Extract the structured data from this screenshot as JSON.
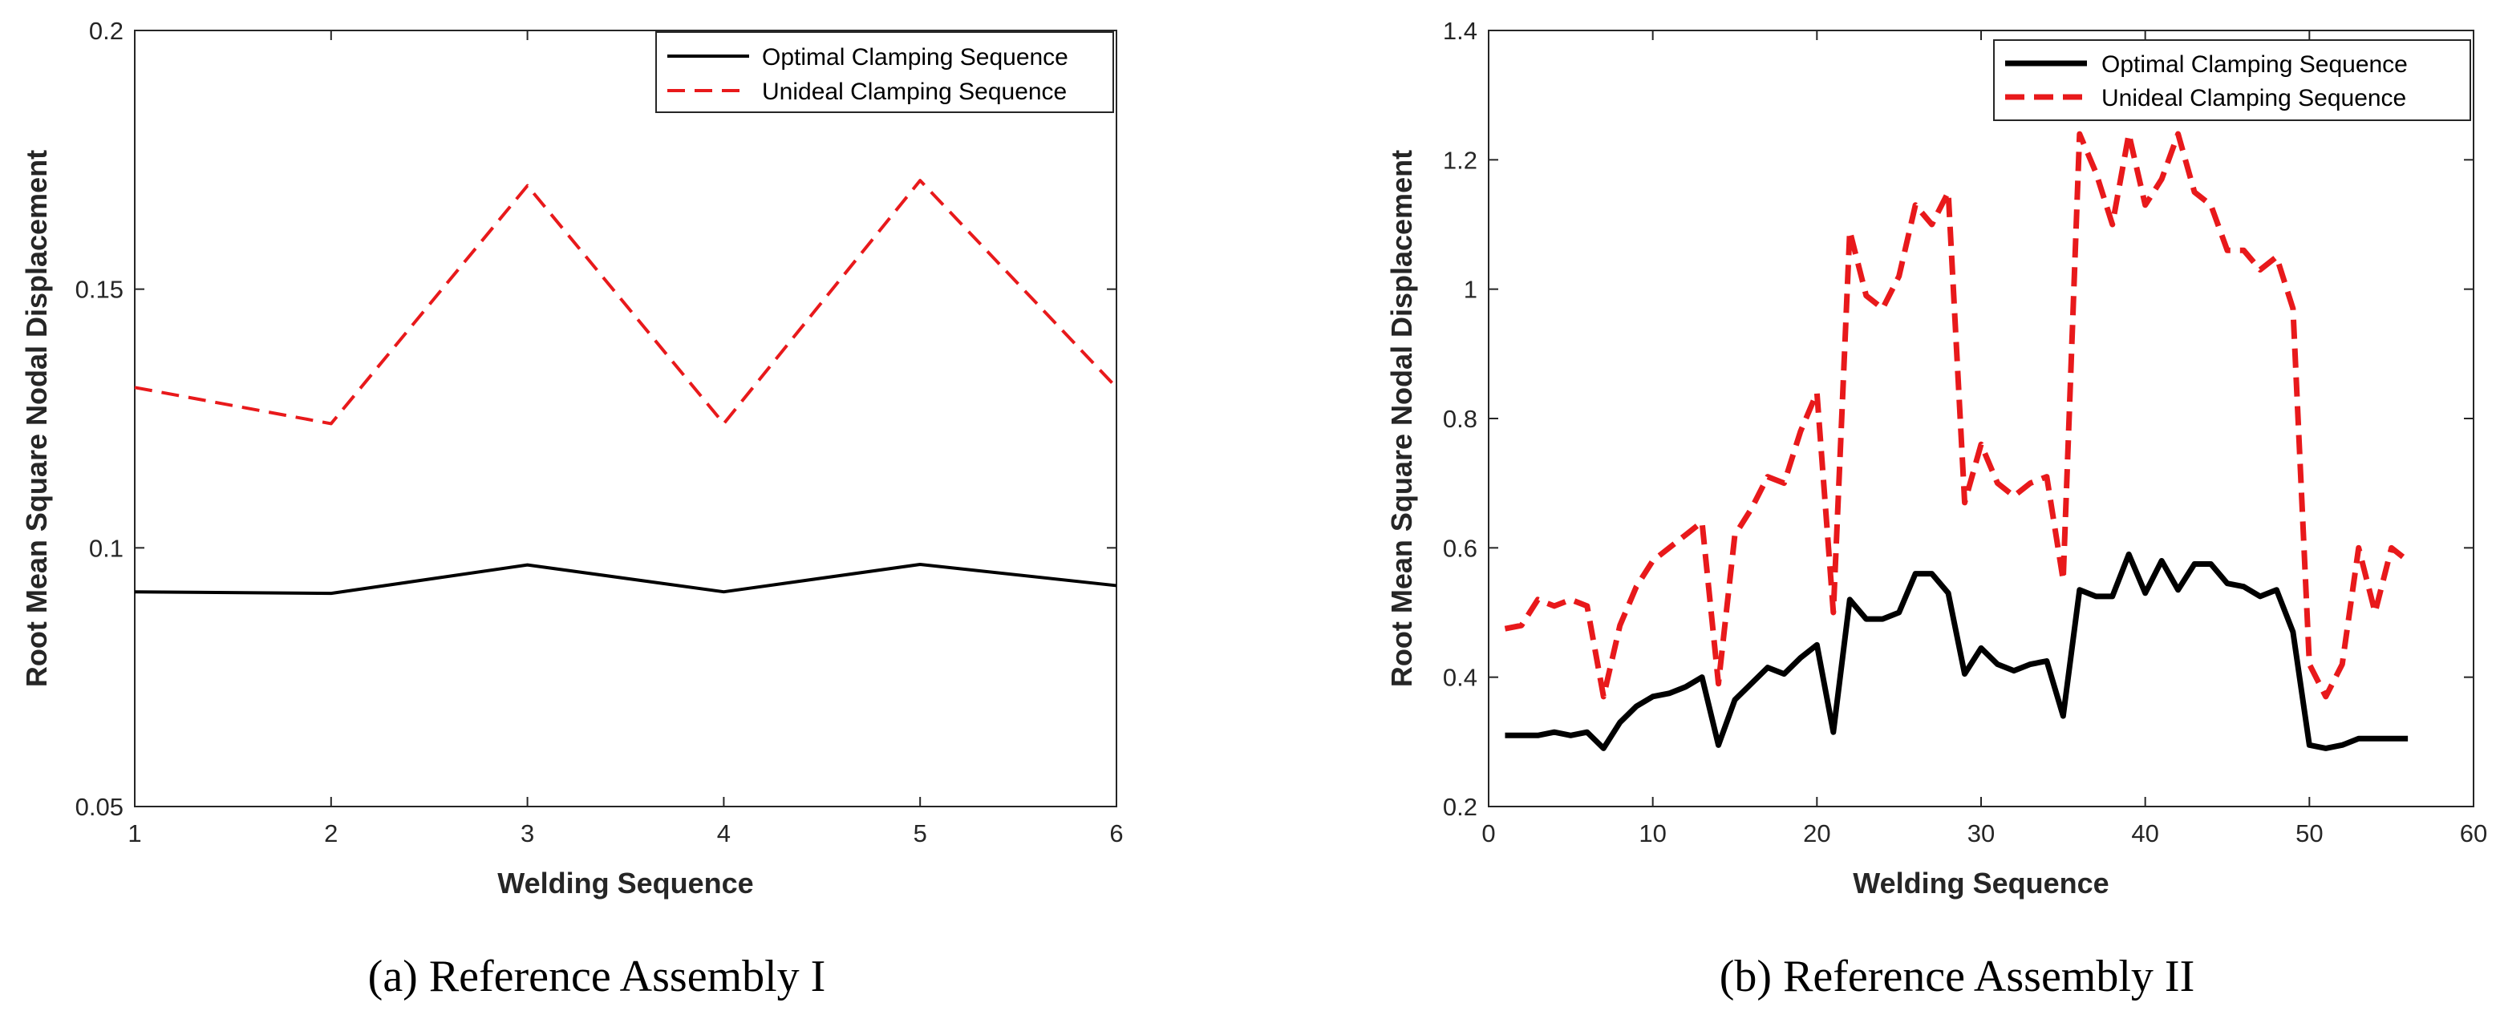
{
  "colors": {
    "optimal": "#000000",
    "unideal": "#e8191b",
    "axis": "#262626"
  },
  "chart_data": [
    {
      "type": "line",
      "title": "",
      "caption": "(a)  Reference Assembly I",
      "xlabel": "Welding Sequence",
      "ylabel": "Root Mean Square Nodal Displacement",
      "xlim": [
        1,
        6
      ],
      "ylim": [
        0.05,
        0.2
      ],
      "xticks": [
        1,
        2,
        3,
        4,
        5,
        6
      ],
      "xtick_labels": [
        "1",
        "2",
        "3",
        "4",
        "5",
        "6"
      ],
      "yticks": [
        0.05,
        0.1,
        0.15,
        0.2
      ],
      "ytick_labels": [
        "0.05",
        "0.1",
        "0.15",
        "0.2"
      ],
      "grid": false,
      "legend_position": "top-right",
      "series": [
        {
          "name": "Optimal Clamping Sequence",
          "style": "solid",
          "x": [
            1,
            2,
            3,
            4,
            5,
            6
          ],
          "y": [
            0.0915,
            0.0912,
            0.0967,
            0.0915,
            0.0968,
            0.0927
          ]
        },
        {
          "name": "Unideal Clamping Sequence",
          "style": "dashed",
          "x": [
            1,
            2,
            3,
            4,
            5,
            6
          ],
          "y": [
            0.131,
            0.124,
            0.17,
            0.124,
            0.171,
            0.131
          ]
        }
      ]
    },
    {
      "type": "line",
      "title": "",
      "caption": "(b)  Reference Assembly II",
      "xlabel": "Welding Sequence",
      "ylabel": "Root Mean Square Nodal Displacement",
      "xlim": [
        0,
        60
      ],
      "ylim": [
        0.2,
        1.4
      ],
      "xticks": [
        0,
        10,
        20,
        30,
        40,
        50,
        60
      ],
      "xtick_labels": [
        "0",
        "10",
        "20",
        "30",
        "40",
        "50",
        "60"
      ],
      "yticks": [
        0.2,
        0.4,
        0.6,
        0.8,
        1.0,
        1.2,
        1.4
      ],
      "ytick_labels": [
        "0.2",
        "0.4",
        "0.6",
        "0.8",
        "1",
        "1.2",
        "1.4"
      ],
      "grid": false,
      "legend_position": "top-right",
      "series": [
        {
          "name": "Optimal Clamping Sequence",
          "style": "solid",
          "x": [
            1,
            2,
            3,
            4,
            5,
            6,
            7,
            8,
            9,
            10,
            11,
            12,
            13,
            14,
            15,
            16,
            17,
            18,
            19,
            20,
            21,
            22,
            23,
            24,
            25,
            26,
            27,
            28,
            29,
            30,
            31,
            32,
            33,
            34,
            35,
            36,
            37,
            38,
            39,
            40,
            41,
            42,
            43,
            44,
            45,
            46,
            47,
            48,
            49,
            50,
            51,
            52,
            53,
            54,
            55,
            56
          ],
          "y": [
            0.31,
            0.31,
            0.31,
            0.315,
            0.31,
            0.315,
            0.29,
            0.33,
            0.355,
            0.37,
            0.375,
            0.385,
            0.4,
            0.295,
            0.365,
            0.39,
            0.415,
            0.405,
            0.43,
            0.45,
            0.315,
            0.52,
            0.49,
            0.49,
            0.5,
            0.56,
            0.56,
            0.53,
            0.405,
            0.445,
            0.42,
            0.41,
            0.42,
            0.425,
            0.34,
            0.535,
            0.525,
            0.525,
            0.59,
            0.53,
            0.58,
            0.535,
            0.575,
            0.575,
            0.545,
            0.54,
            0.525,
            0.535,
            0.47,
            0.295,
            0.29,
            0.295,
            0.305,
            0.305,
            0.305,
            0.305
          ]
        },
        {
          "name": "Unideal Clamping Sequence",
          "style": "dashed",
          "x": [
            1,
            2,
            3,
            4,
            5,
            6,
            7,
            8,
            9,
            10,
            11,
            12,
            13,
            14,
            15,
            16,
            17,
            18,
            19,
            20,
            21,
            22,
            23,
            24,
            25,
            26,
            27,
            28,
            29,
            30,
            31,
            32,
            33,
            34,
            35,
            36,
            37,
            38,
            39,
            40,
            41,
            42,
            43,
            44,
            45,
            46,
            47,
            48,
            49,
            50,
            51,
            52,
            53,
            54,
            55,
            56
          ],
          "y": [
            0.475,
            0.48,
            0.52,
            0.51,
            0.52,
            0.51,
            0.37,
            0.48,
            0.54,
            0.58,
            0.6,
            0.62,
            0.64,
            0.39,
            0.62,
            0.66,
            0.71,
            0.7,
            0.78,
            0.84,
            0.5,
            1.09,
            0.99,
            0.97,
            1.02,
            1.13,
            1.1,
            1.15,
            0.67,
            0.76,
            0.7,
            0.68,
            0.7,
            0.71,
            0.55,
            1.24,
            1.18,
            1.1,
            1.24,
            1.13,
            1.17,
            1.24,
            1.15,
            1.13,
            1.06,
            1.06,
            1.03,
            1.05,
            0.97,
            0.42,
            0.37,
            0.42,
            0.6,
            0.5,
            0.6,
            0.58
          ]
        }
      ]
    }
  ]
}
